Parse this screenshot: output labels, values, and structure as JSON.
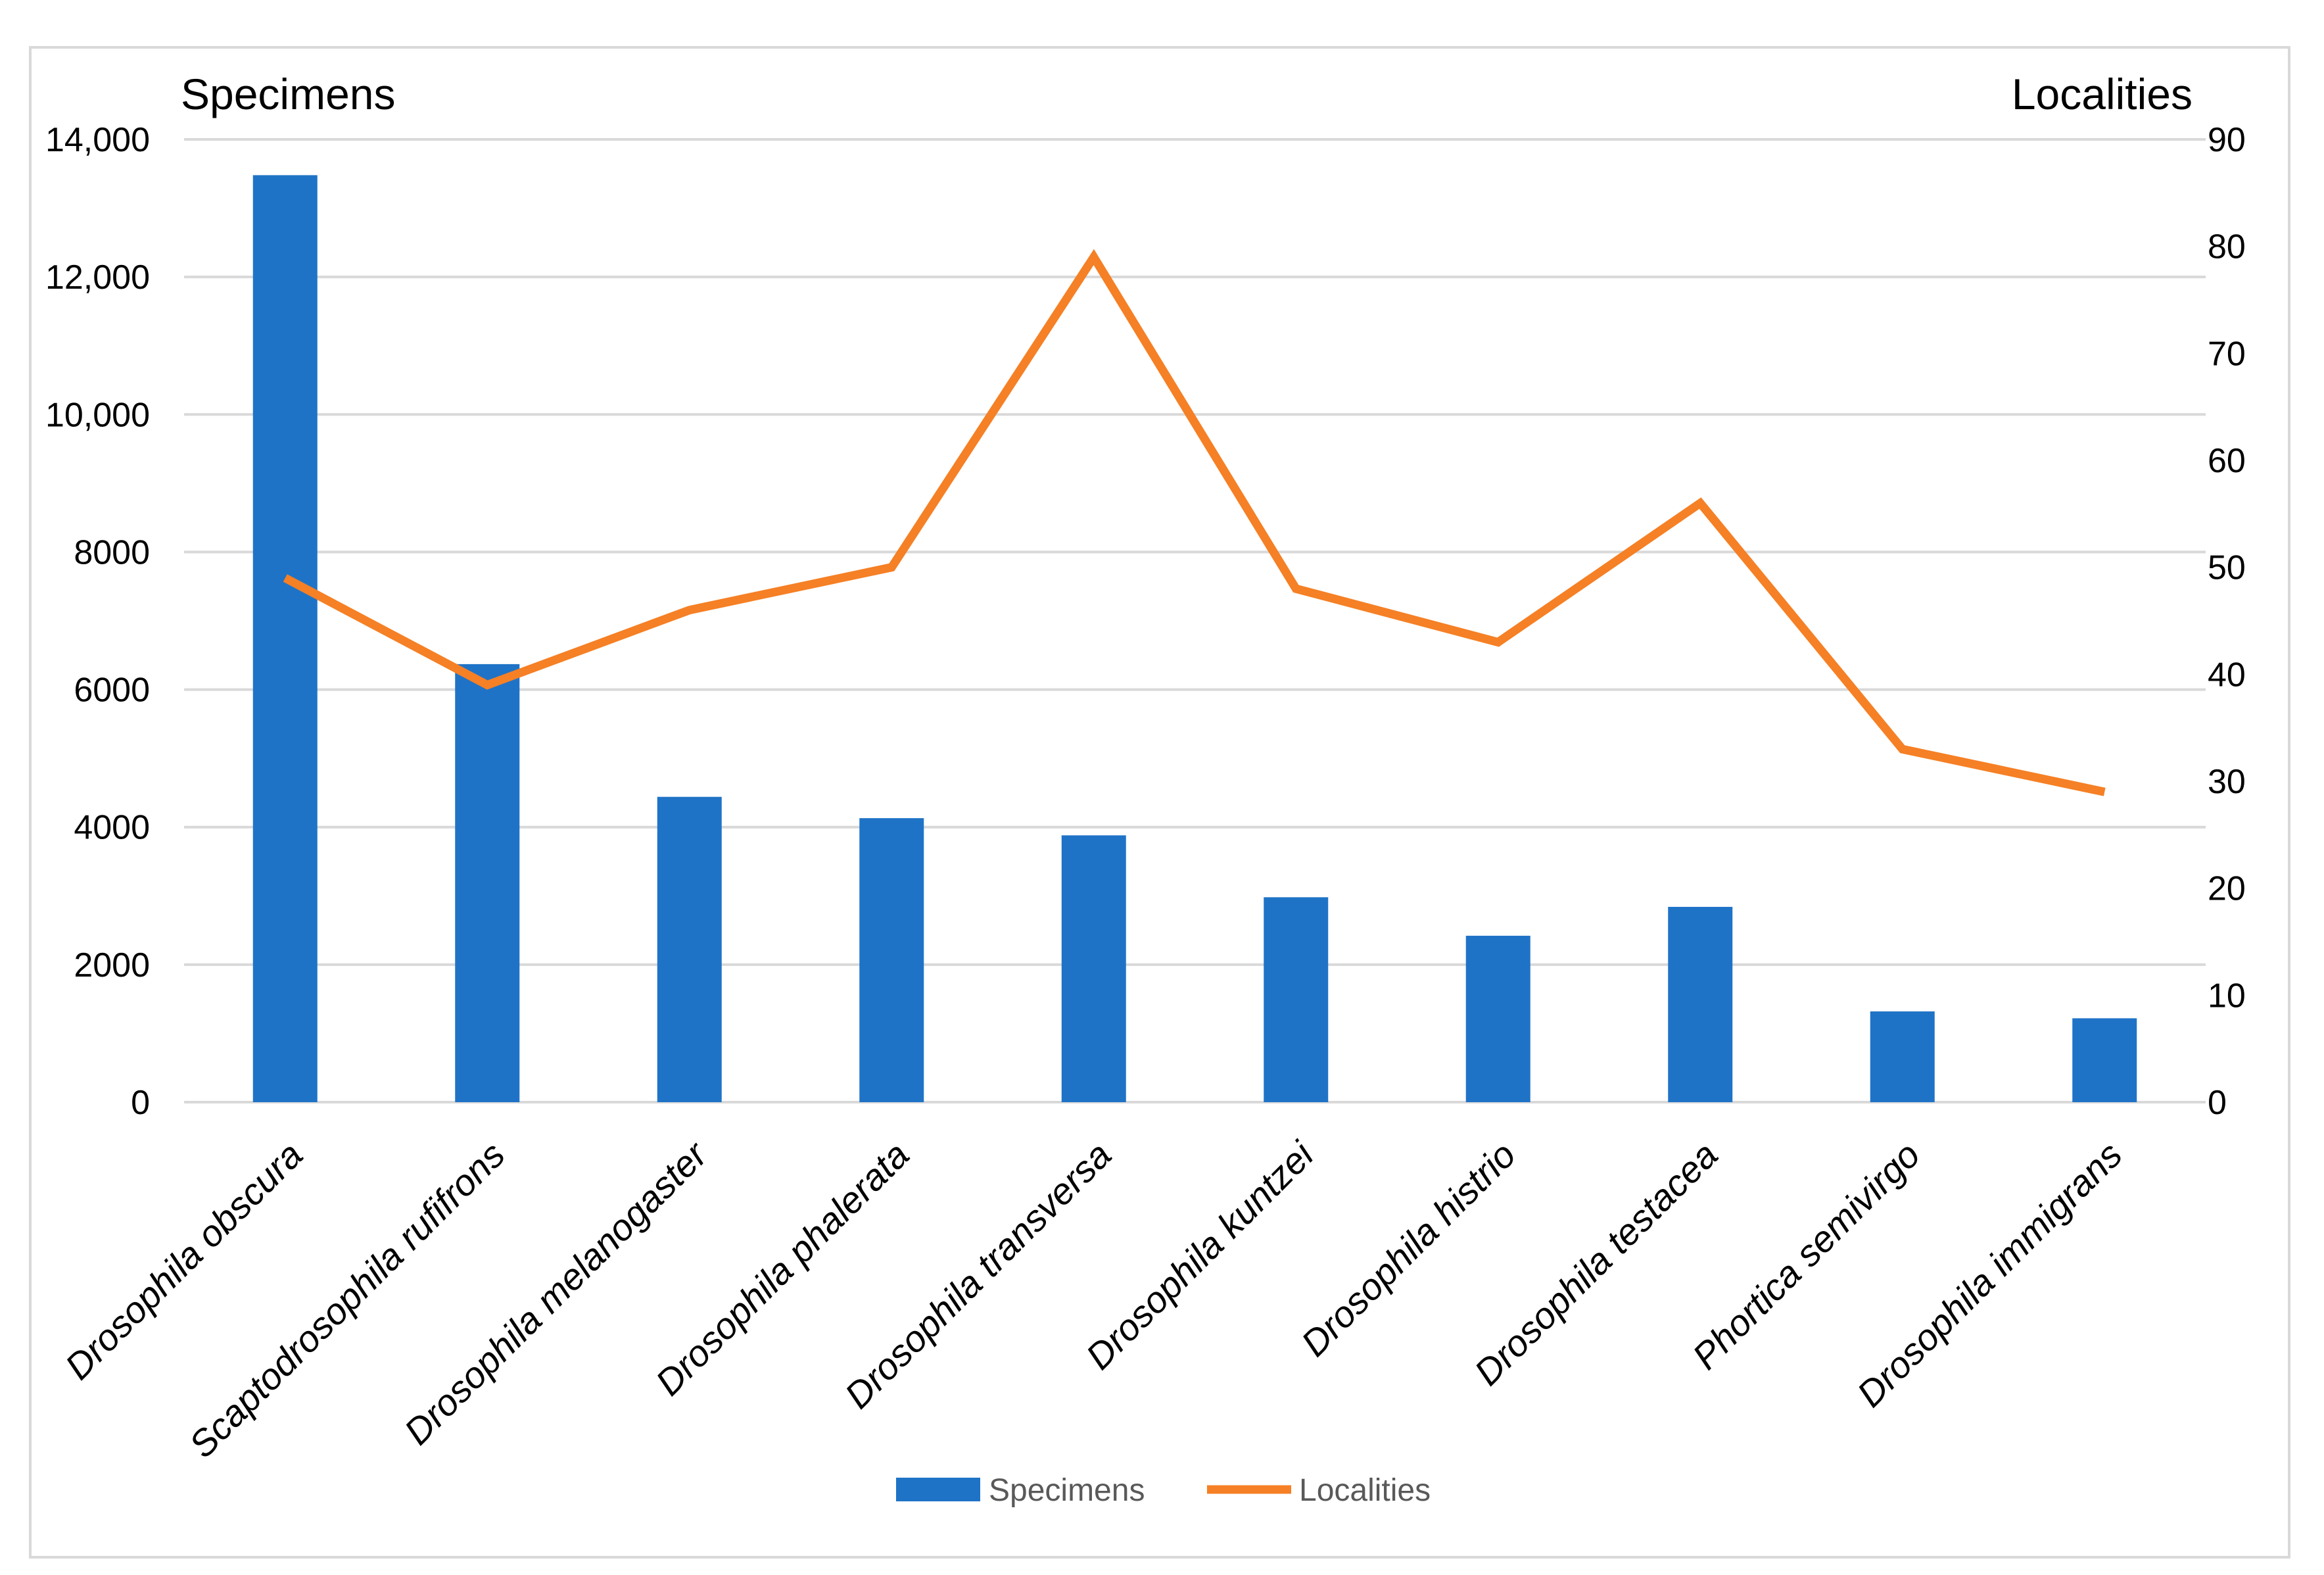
{
  "chart_data": {
    "type": "bar+line",
    "categories": [
      "Drosophila obscura",
      "Scaptodrosophila rufifrons",
      "Drosophila melanogaster",
      "Drosophila phalerata",
      "Drosophila transversa",
      "Drosophila kuntzei",
      "Drosophila histrio",
      "Drosophila testacea",
      "Phortica semivirgo",
      "Drosophila immigrans"
    ],
    "series": [
      {
        "name": "Specimens",
        "type": "bar",
        "axis": "left",
        "color": "#1f73c7",
        "values": [
          13480,
          6370,
          4440,
          4130,
          3880,
          2980,
          2420,
          2840,
          1320,
          1220
        ]
      },
      {
        "name": "Localities",
        "type": "line",
        "axis": "right",
        "color": "#f58025",
        "values": [
          49,
          39,
          46,
          50,
          79,
          48,
          43,
          56,
          33,
          29
        ]
      }
    ],
    "left_axis": {
      "label": "Specimens",
      "ylim": [
        0,
        14000
      ],
      "ticks": [
        0,
        2000,
        4000,
        6000,
        8000,
        10000,
        12000,
        14000
      ],
      "tick_labels": [
        "0",
        "2000",
        "4000",
        "6000",
        "8000",
        "10,000",
        "12,000",
        "14,000"
      ]
    },
    "right_axis": {
      "label": "Localities",
      "ylim": [
        0,
        90
      ],
      "ticks": [
        0,
        10,
        20,
        30,
        40,
        50,
        60,
        70,
        80,
        90
      ],
      "tick_labels": [
        "0",
        "10",
        "20",
        "30",
        "40",
        "50",
        "60",
        "70",
        "80",
        "90"
      ]
    },
    "grid": true,
    "legend": {
      "position": "bottom-center",
      "entries": [
        "Specimens",
        "Localities"
      ]
    }
  }
}
